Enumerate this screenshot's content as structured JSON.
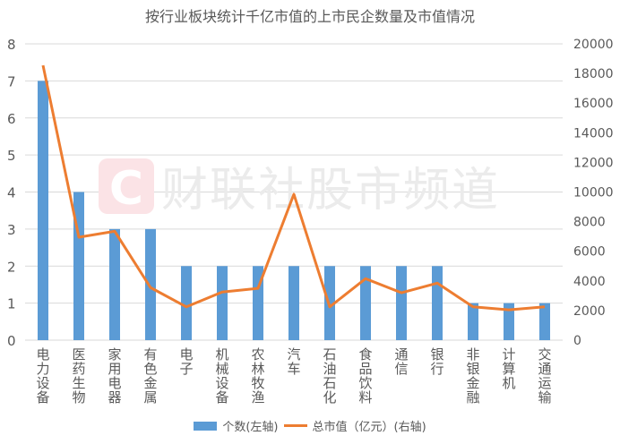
{
  "title": "按行业板块统计千亿市值的上市民企数量及市值情况",
  "watermark": {
    "logo_letter": "C",
    "text": "财联社股市频道"
  },
  "colors": {
    "bar": "#5b9bd5",
    "line": "#ed7d31",
    "grid": "#d9d9d9",
    "text": "#595959"
  },
  "legend": [
    {
      "label": "个数(左轴)",
      "type": "bar"
    },
    {
      "label": "总市值（亿元）(右轴)",
      "type": "line"
    }
  ],
  "chart_data": {
    "type": "bar+line",
    "title": "按行业板块统计千亿市值的上市民企数量及市值情况",
    "categories": [
      "电力设备",
      "医药生物",
      "家用电器",
      "有色金属",
      "电子",
      "机械设备",
      "农林牧渔",
      "汽车",
      "石油石化",
      "食品饮料",
      "通信",
      "银行",
      "非银金融",
      "计算机",
      "交通运输"
    ],
    "series": [
      {
        "name": "个数(左轴)",
        "type": "bar",
        "axis": "left",
        "values": [
          7,
          4,
          3,
          3,
          2,
          2,
          2,
          2,
          2,
          2,
          2,
          2,
          1,
          1,
          1
        ]
      },
      {
        "name": "总市值（亿元）(右轴)",
        "type": "line",
        "axis": "right",
        "values": [
          18550,
          6950,
          7350,
          3550,
          2250,
          3250,
          3500,
          9850,
          2250,
          4150,
          3200,
          3850,
          2250,
          2050,
          2250
        ]
      }
    ],
    "left_axis": {
      "ylim": [
        0,
        8
      ],
      "ticks": [
        "0",
        "1",
        "2",
        "3",
        "4",
        "5",
        "6",
        "7",
        "8"
      ]
    },
    "right_axis": {
      "ylim": [
        0,
        20000
      ],
      "ticks": [
        "0",
        "2000",
        "4000",
        "6000",
        "8000",
        "10000",
        "12000",
        "14000",
        "16000",
        "18000",
        "20000"
      ]
    },
    "grid": true,
    "legend_position": "bottom"
  }
}
